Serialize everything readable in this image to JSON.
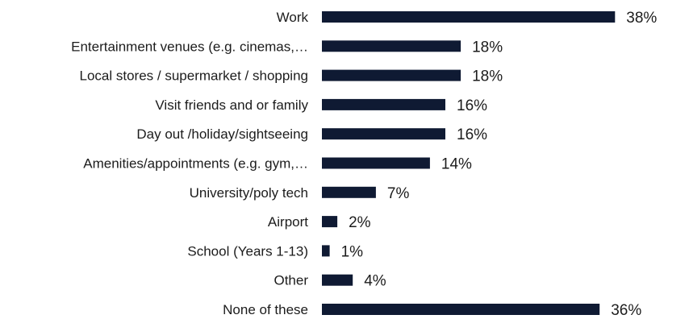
{
  "chart_data": {
    "type": "bar",
    "orientation": "horizontal",
    "bar_color": "#0f1a33",
    "categories": [
      "Work",
      "Entertainment venues (e.g. cinemas,…",
      "Local stores / supermarket / shopping",
      "Visit friends and or family",
      "Day out /holiday/sightseeing",
      "Amenities/appointments (e.g. gym,…",
      "University/poly tech",
      "Airport",
      "School (Years 1-13)",
      "Other",
      "None of these"
    ],
    "values": [
      38,
      18,
      18,
      16,
      16,
      14,
      7,
      2,
      1,
      4,
      36
    ],
    "value_labels": [
      "38%",
      "18%",
      "18%",
      "16%",
      "16%",
      "14%",
      "7%",
      "2%",
      "1%",
      "4%",
      "36%"
    ],
    "xlim": [
      0,
      40
    ],
    "grid": false,
    "axes_visible": false,
    "title": "",
    "xlabel": "",
    "ylabel": ""
  }
}
